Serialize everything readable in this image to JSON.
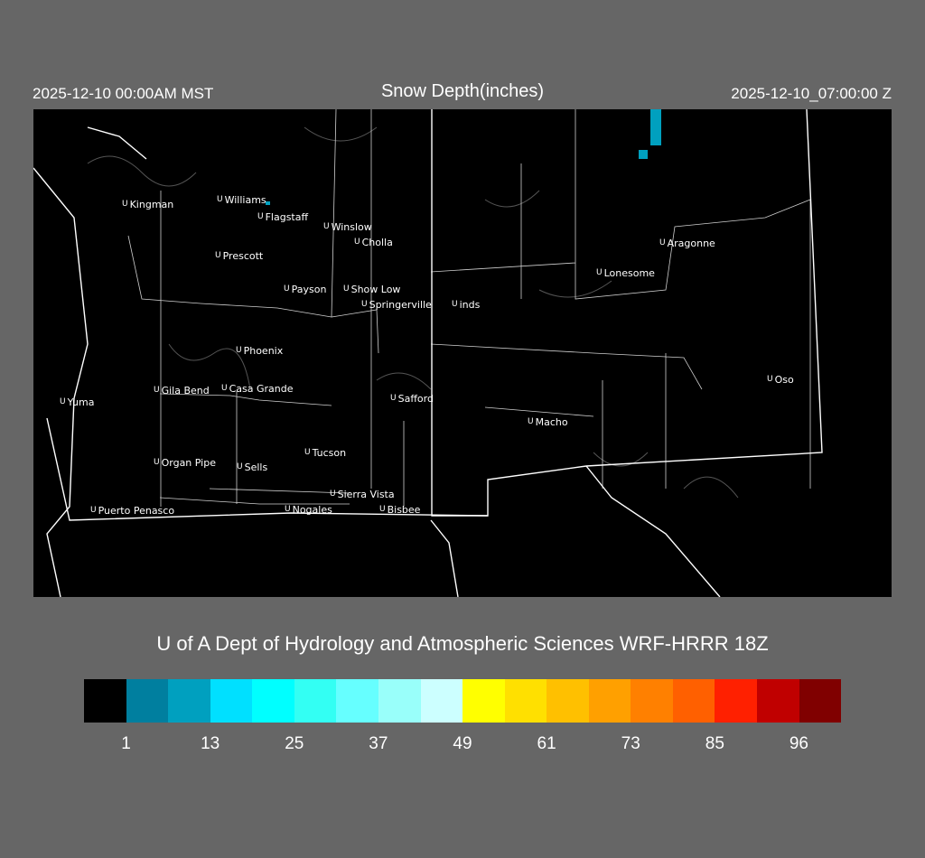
{
  "header": {
    "local_time": "2025-12-10 00:00AM MST",
    "title": "Snow Depth(inches)",
    "valid_time": "2025-12-10_07:00:00 Z"
  },
  "map": {
    "snow_color": "#00a0bf",
    "cities": [
      "Kingman",
      "Williams",
      "Flagstaff",
      "Winslow",
      "Cholla",
      "Prescott",
      "Payson",
      "Show Low",
      "Springerville",
      "inds",
      "Phoenix",
      "Gila Bend",
      "Casa Grande",
      "Yuma",
      "Safford",
      "Tucson",
      "Organ Pipe",
      "Sells",
      "Sierra Vista",
      "Nogales",
      "Bisbee",
      "Puerto Penasco",
      "Macho",
      "Lonesome",
      "Aragonne",
      "Oso"
    ],
    "marker_glyph": "U"
  },
  "footer": {
    "credit": "U of A Dept of Hydrology and Atmospheric Sciences WRF-HRRR 18Z"
  },
  "colorbar": {
    "colors": [
      "#000000",
      "#007f9f",
      "#00a0bf",
      "#00e0ff",
      "#00ffff",
      "#33fff3",
      "#66ffff",
      "#99fffa",
      "#ccffff",
      "#ffff00",
      "#ffe000",
      "#ffc000",
      "#ffa000",
      "#ff8000",
      "#ff6000",
      "#ff2000",
      "#c00000",
      "#800000"
    ],
    "ticks": [
      "1",
      "13",
      "25",
      "37",
      "49",
      "61",
      "73",
      "85",
      "96"
    ]
  }
}
